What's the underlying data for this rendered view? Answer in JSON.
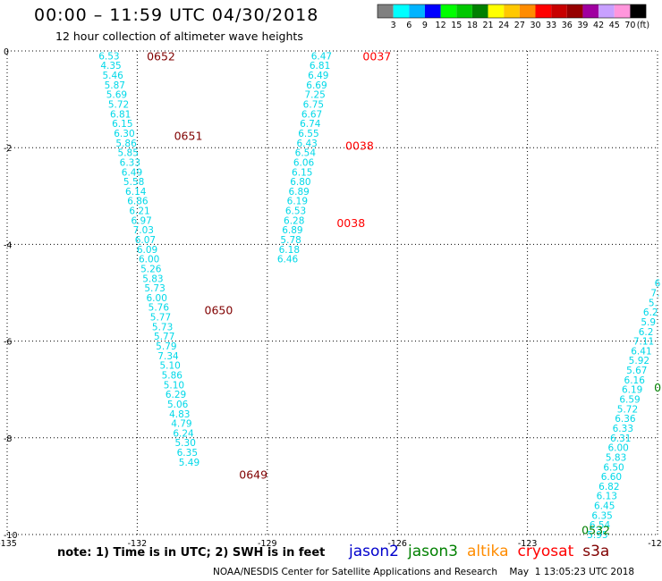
{
  "title": "00:00 – 11:59 UTC 04/30/2018",
  "subtitle": "12 hour collection of altimeter wave heights",
  "note": "note: 1) Time is in UTC; 2) SWH is in feet",
  "footer": "NOAA/NESDIS Center for Satellite Applications and Research    May  1 13:05:23 UTC 2018",
  "legend": {
    "unit": "(ft)",
    "labels": [
      "3",
      "6",
      "9",
      "12",
      "15",
      "18",
      "21",
      "24",
      "27",
      "30",
      "33",
      "36",
      "39",
      "42",
      "45",
      "70"
    ],
    "colors": [
      "#808080",
      "#00ffff",
      "#00b4ff",
      "#0000ff",
      "#00ff00",
      "#00c800",
      "#008000",
      "#ffff00",
      "#ffc800",
      "#ff8c00",
      "#ff0000",
      "#c80000",
      "#960000",
      "#a000a0",
      "#c8a0ff",
      "#ff96dc",
      "#000000"
    ]
  },
  "axes": {
    "x_ticks": [
      "-135",
      "-132",
      "-129",
      "-126",
      "-123",
      "-120"
    ],
    "y_ticks": [
      "0",
      "-2",
      "-4",
      "-6",
      "-8",
      "-10"
    ]
  },
  "satellites": [
    {
      "name": "jason2",
      "color": "#0000cc"
    },
    {
      "name": "jason3",
      "color": "#008000"
    },
    {
      "name": "altika",
      "color": "#ff8c00"
    },
    {
      "name": "cryosat",
      "color": "#ff0000"
    },
    {
      "name": "s3a",
      "color": "#800000"
    }
  ],
  "tracks": [
    {
      "lon0": -132.65,
      "lat0": -0.1,
      "dlon": 0.044,
      "dlat": -0.2,
      "values": [
        "6.53",
        "4.35",
        "5.46",
        "5.87",
        "5.69",
        "5.72",
        "6.81",
        "6.15",
        "6.30",
        "5.86",
        "5.85",
        "6.33",
        "6.49",
        "5.58",
        "6.14",
        "6.86",
        "6.21",
        "6.97",
        "7.03",
        "6.07",
        "6.09",
        "6.00",
        "5.26",
        "5.83",
        "5.73",
        "6.00",
        "5.76",
        "5.77",
        "5.73",
        "5.77",
        "5.79",
        "7.34",
        "5.10",
        "5.86",
        "5.10",
        "6.29",
        "5.06",
        "4.83",
        "4.79",
        "6.24",
        "5.30",
        "6.35",
        "5.49"
      ]
    },
    {
      "lon0": -127.75,
      "lat0": -0.1,
      "dlon": -0.0372,
      "dlat": -0.2,
      "values": [
        "6.47",
        "6.81",
        "6.49",
        "6.69",
        "7.25",
        "6.75",
        "6.67",
        "6.74",
        "6.55",
        "6.43",
        "6.54",
        "6.06",
        "6.15",
        "6.80",
        "6.89",
        "6.19",
        "6.53",
        "6.28",
        "6.89",
        "5.78",
        "6.18",
        "6.46"
      ]
    },
    {
      "lon0": -120.0,
      "lat0": -4.8,
      "dlon": -0.0532,
      "dlat": -0.2,
      "values": [
        "6",
        "7.",
        "5.",
        "6.2",
        "5.9",
        "6.2",
        "7.11",
        "6.41",
        "5.92",
        "5.67",
        "6.16",
        "6.19",
        "6.59",
        "5.72",
        "6.36",
        "6.33",
        "6.31",
        "6.00",
        "5.83",
        "6.50",
        "6.60",
        "6.82",
        "6.13",
        "6.45",
        "6.35",
        "6.54",
        "5.95"
      ]
    }
  ],
  "time_labels": [
    {
      "text": "0652",
      "lon": -131.78,
      "lat": -0.1,
      "color": "#800000"
    },
    {
      "text": "0651",
      "lon": -131.15,
      "lat": -1.75,
      "color": "#800000"
    },
    {
      "text": "0650",
      "lon": -130.45,
      "lat": -5.35,
      "color": "#800000"
    },
    {
      "text": "0649",
      "lon": -129.65,
      "lat": -8.75,
      "color": "#800000"
    },
    {
      "text": "0037",
      "lon": -126.8,
      "lat": -0.1,
      "color": "#ff0000"
    },
    {
      "text": "0038",
      "lon": -127.2,
      "lat": -1.95,
      "color": "#ff0000"
    },
    {
      "text": "0038",
      "lon": -127.4,
      "lat": -3.55,
      "color": "#ff0000"
    },
    {
      "text": "0532",
      "lon": -121.75,
      "lat": -9.9,
      "color": "#008000"
    },
    {
      "text": "0",
      "lon": -120.08,
      "lat": -6.95,
      "color": "#008000"
    }
  ]
}
